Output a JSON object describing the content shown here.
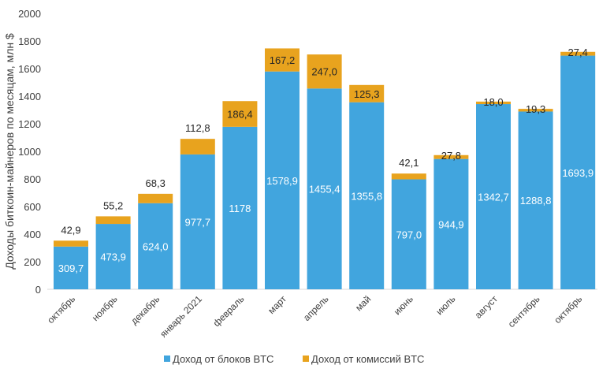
{
  "chart_data": {
    "type": "bar",
    "stacked": true,
    "title": "",
    "xlabel": "",
    "ylabel": "Доходы биткоин-майнеров по месяцам, млн $",
    "ylim": [
      0,
      2000
    ],
    "yticks": [
      0,
      200,
      400,
      600,
      800,
      1000,
      1200,
      1400,
      1600,
      1800,
      2000
    ],
    "grid": false,
    "legend_placement": "bottom",
    "categories": [
      "октябрь",
      "ноябрь",
      "декабрь",
      "январь 2021",
      "февраль",
      "март",
      "апрель",
      "май",
      "июнь",
      "июль",
      "август",
      "сентябрь",
      "октябрь"
    ],
    "series": [
      {
        "name": "Доход от блоков BTC",
        "color": "#41a5de",
        "values": [
          309.7,
          473.9,
          624.0,
          977.7,
          1178,
          1578.9,
          1455.4,
          1355.8,
          797.0,
          944.9,
          1342.7,
          1288.8,
          1693.9
        ],
        "labels": [
          "309,7",
          "473,9",
          "624,0",
          "977,7",
          "1178",
          "1578,9",
          "1455,4",
          "1355,8",
          "797,0",
          "944,9",
          "1342,7",
          "1288,8",
          "1693,9"
        ]
      },
      {
        "name": "Доход от комиссий BTC",
        "color": "#e8a31e",
        "values": [
          42.9,
          55.2,
          68.3,
          112.8,
          186.4,
          167.2,
          247.0,
          125.3,
          42.1,
          27.8,
          18.0,
          19.3,
          27.4
        ],
        "labels": [
          "42,9",
          "55,2",
          "68,3",
          "112,8",
          "186,4",
          "167,2",
          "247,0",
          "125,3",
          "42,1",
          "27,8",
          "18,0",
          "19,3",
          "27,4"
        ]
      }
    ]
  }
}
